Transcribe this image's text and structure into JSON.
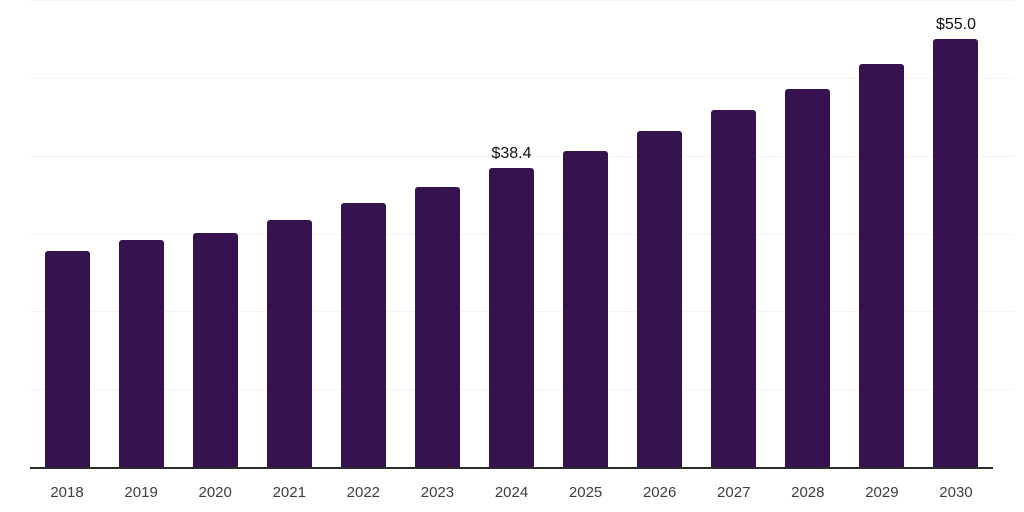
{
  "chart_data": {
    "type": "bar",
    "title": "",
    "xlabel": "",
    "ylabel": "",
    "categories": [
      "2018",
      "2019",
      "2020",
      "2021",
      "2022",
      "2023",
      "2024",
      "2025",
      "2026",
      "2027",
      "2028",
      "2029",
      "2030"
    ],
    "values": [
      27.7,
      29.2,
      30.1,
      31.8,
      33.9,
      36.0,
      38.4,
      40.6,
      43.2,
      45.9,
      48.6,
      51.8,
      55.0
    ],
    "bar_labels": [
      "",
      "",
      "",
      "",
      "",
      "",
      "$38.4",
      "",
      "",
      "",
      "",
      "",
      "$55.0"
    ],
    "ylim": [
      0,
      60
    ],
    "gridline_values": [
      10,
      20,
      30,
      40,
      50,
      60
    ],
    "grid": "horizontal-only",
    "legend": "none",
    "colors": {
      "bar": "#36124f",
      "axis_line": "#2b2b2b",
      "gridline": "#f3f3f3",
      "tick_label": "#3d3d3d",
      "data_label": "#111111"
    }
  }
}
